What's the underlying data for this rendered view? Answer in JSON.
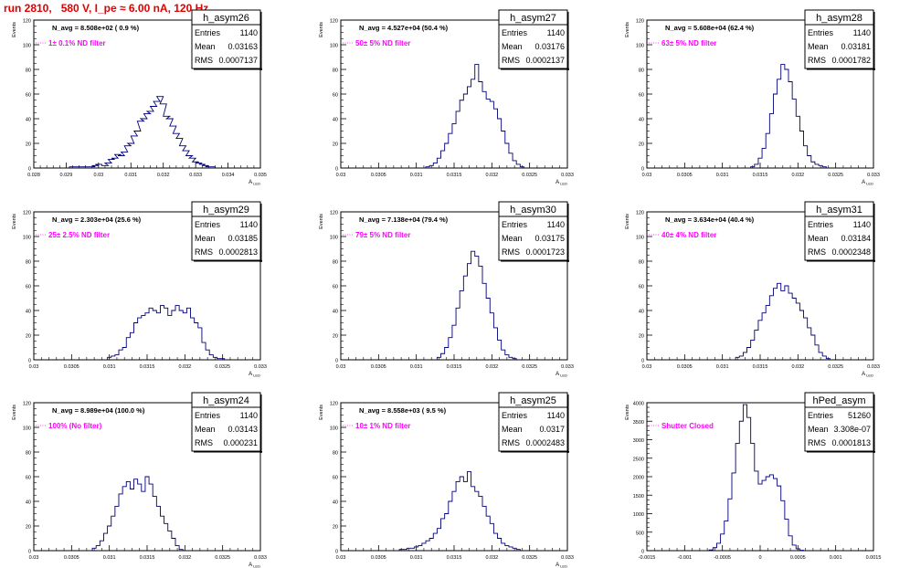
{
  "page": {
    "run_title": "run 2810,   580 V, I_pe ≈ 6.00 nA, 120 Hz"
  },
  "chart_data": [
    {
      "type": "histogram",
      "name": "h_asym26",
      "navg": "N_avg = 8.508e+02 ( 0.9 %)",
      "filter": "1± 0.1% ND filter",
      "stats": {
        "entries": "1140",
        "mean": "0.03163",
        "rms": "0.0007137"
      },
      "ylabel": "Events",
      "xlabel": "A_{LED}",
      "xlim": [
        0.028,
        0.035
      ],
      "ylim": [
        0,
        120
      ],
      "xticks": [
        "0.028",
        "0.029",
        "0.03",
        "0.031",
        "0.032",
        "0.033",
        "0.034",
        "0.035"
      ],
      "yticks": [
        "0",
        "20",
        "40",
        "60",
        "80",
        "100",
        "120"
      ],
      "x": [
        0.0292,
        0.0294,
        0.0296,
        0.0298,
        0.0299,
        0.03,
        0.0302,
        0.0303,
        0.0304,
        0.0305,
        0.0306,
        0.0307,
        0.0308,
        0.0309,
        0.031,
        0.0311,
        0.0312,
        0.0313,
        0.0314,
        0.0315,
        0.0316,
        0.0317,
        0.0318,
        0.0319,
        0.032,
        0.0321,
        0.0322,
        0.0323,
        0.0324,
        0.0325,
        0.0326,
        0.0327,
        0.0328,
        0.0329,
        0.033,
        0.0331,
        0.0332,
        0.0333,
        0.0334,
        0.0335
      ],
      "y": [
        1,
        1,
        1,
        1,
        2,
        3,
        2,
        4,
        7,
        8,
        11,
        10,
        13,
        18,
        20,
        26,
        30,
        38,
        40,
        44,
        46,
        50,
        54,
        58,
        52,
        42,
        40,
        34,
        28,
        24,
        18,
        14,
        10,
        8,
        5,
        4,
        3,
        2,
        1,
        1
      ]
    },
    {
      "type": "histogram",
      "name": "h_asym27",
      "navg": "N_avg = 4.527e+04 (50.4 %)",
      "filter": "50± 5% ND filter",
      "stats": {
        "entries": "1140",
        "mean": "0.03176",
        "rms": "0.0002137"
      },
      "ylabel": "Events",
      "xlabel": "A_{LED}",
      "xlim": [
        0.03,
        0.033
      ],
      "ylim": [
        0,
        120
      ],
      "xticks": [
        "0.03",
        "0.0305",
        "0.031",
        "0.0315",
        "0.032",
        "0.0325",
        "0.033"
      ],
      "yticks": [
        "0",
        "20",
        "40",
        "60",
        "80",
        "100",
        "120"
      ],
      "x": [
        0.03115,
        0.0312,
        0.03125,
        0.0313,
        0.03135,
        0.0314,
        0.03145,
        0.0315,
        0.03155,
        0.0316,
        0.03165,
        0.0317,
        0.03175,
        0.0318,
        0.03185,
        0.0319,
        0.03195,
        0.032,
        0.03205,
        0.0321,
        0.03215,
        0.0322,
        0.03225,
        0.0323,
        0.03235,
        0.0324
      ],
      "y": [
        1,
        2,
        4,
        8,
        14,
        20,
        28,
        36,
        46,
        55,
        60,
        66,
        72,
        84,
        70,
        62,
        56,
        54,
        48,
        40,
        30,
        20,
        12,
        6,
        3,
        1
      ]
    },
    {
      "type": "histogram",
      "name": "h_asym28",
      "navg": "N_avg = 5.608e+04 (62.4 %)",
      "filter": "63± 5% ND filter",
      "stats": {
        "entries": "1140",
        "mean": "0.03181",
        "rms": "0.0001782"
      },
      "ylabel": "Events",
      "xlabel": "A_{LED}",
      "xlim": [
        0.03,
        0.033
      ],
      "ylim": [
        0,
        120
      ],
      "xticks": [
        "0.03",
        "0.0305",
        "0.031",
        "0.0315",
        "0.032",
        "0.0325",
        "0.033"
      ],
      "yticks": [
        "0",
        "20",
        "40",
        "60",
        "80",
        "100",
        "120"
      ],
      "x": [
        0.0314,
        0.03145,
        0.0315,
        0.03155,
        0.0316,
        0.03165,
        0.0317,
        0.03175,
        0.0318,
        0.03185,
        0.0319,
        0.03195,
        0.032,
        0.03205,
        0.0321,
        0.03215,
        0.0322,
        0.03225,
        0.0323,
        0.03235
      ],
      "y": [
        1,
        3,
        8,
        16,
        28,
        44,
        60,
        72,
        84,
        80,
        70,
        56,
        42,
        30,
        18,
        10,
        5,
        3,
        2,
        1
      ]
    },
    {
      "type": "histogram",
      "name": "h_asym29",
      "navg": "N_avg = 2.303e+04 (25.6 %)",
      "filter": "25± 2.5% ND filter",
      "stats": {
        "entries": "1140",
        "mean": "0.03185",
        "rms": "0.0002813"
      },
      "ylabel": "Events",
      "xlabel": "A_{LED}",
      "xlim": [
        0.03,
        0.033
      ],
      "ylim": [
        0,
        120
      ],
      "xticks": [
        "0.03",
        "0.0305",
        "0.031",
        "0.0315",
        "0.032",
        "0.0325",
        "0.033"
      ],
      "yticks": [
        "0",
        "20",
        "40",
        "60",
        "80",
        "100",
        "120"
      ],
      "x": [
        0.031,
        0.03105,
        0.0311,
        0.03115,
        0.0312,
        0.03125,
        0.0313,
        0.03135,
        0.0314,
        0.03145,
        0.0315,
        0.03155,
        0.0316,
        0.03165,
        0.0317,
        0.03175,
        0.0318,
        0.03185,
        0.0319,
        0.03195,
        0.032,
        0.03205,
        0.0321,
        0.03215,
        0.0322,
        0.03225,
        0.0323,
        0.03235,
        0.0324,
        0.03245,
        0.0325
      ],
      "y": [
        2,
        3,
        4,
        8,
        10,
        18,
        22,
        30,
        34,
        36,
        38,
        42,
        40,
        38,
        44,
        42,
        36,
        40,
        44,
        40,
        38,
        42,
        34,
        30,
        26,
        14,
        8,
        4,
        2,
        1,
        1
      ]
    },
    {
      "type": "histogram",
      "name": "h_asym30",
      "navg": "N_avg = 7.138e+04 (79.4 %)",
      "filter": "79± 5% ND filter",
      "stats": {
        "entries": "1140",
        "mean": "0.03175",
        "rms": "0.0001723"
      },
      "ylabel": "Events",
      "xlabel": "A_{LED}",
      "xlim": [
        0.03,
        0.033
      ],
      "ylim": [
        0,
        120
      ],
      "xticks": [
        "0.03",
        "0.0305",
        "0.031",
        "0.0315",
        "0.032",
        "0.0325",
        "0.033"
      ],
      "yticks": [
        "0",
        "20",
        "40",
        "60",
        "80",
        "100",
        "120"
      ],
      "x": [
        0.0313,
        0.03135,
        0.0314,
        0.03145,
        0.0315,
        0.03155,
        0.0316,
        0.03165,
        0.0317,
        0.03175,
        0.0318,
        0.03185,
        0.0319,
        0.03195,
        0.032,
        0.03205,
        0.0321,
        0.03215,
        0.0322,
        0.03225,
        0.0323
      ],
      "y": [
        2,
        5,
        10,
        18,
        28,
        42,
        56,
        68,
        78,
        88,
        84,
        76,
        62,
        50,
        38,
        26,
        16,
        8,
        4,
        2,
        1
      ]
    },
    {
      "type": "histogram",
      "name": "h_asym31",
      "navg": "N_avg = 3.634e+04 (40.4 %)",
      "filter": "40± 4% ND filter",
      "stats": {
        "entries": "1140",
        "mean": "0.03184",
        "rms": "0.0002348"
      },
      "ylabel": "Events",
      "xlabel": "A_{LED}",
      "xlim": [
        0.03,
        0.033
      ],
      "ylim": [
        0,
        120
      ],
      "xticks": [
        "0.03",
        "0.0305",
        "0.031",
        "0.0315",
        "0.032",
        "0.0325",
        "0.033"
      ],
      "yticks": [
        "0",
        "20",
        "40",
        "60",
        "80",
        "100",
        "120"
      ],
      "x": [
        0.0312,
        0.03125,
        0.0313,
        0.03135,
        0.0314,
        0.03145,
        0.0315,
        0.03155,
        0.0316,
        0.03165,
        0.0317,
        0.03175,
        0.0318,
        0.03185,
        0.0319,
        0.03195,
        0.032,
        0.03205,
        0.0321,
        0.03215,
        0.0322,
        0.03225,
        0.0323,
        0.03235,
        0.0324
      ],
      "y": [
        2,
        3,
        6,
        10,
        16,
        24,
        32,
        38,
        44,
        52,
        58,
        62,
        56,
        60,
        54,
        50,
        46,
        40,
        34,
        26,
        20,
        12,
        6,
        3,
        1
      ]
    },
    {
      "type": "histogram",
      "name": "h_asym24",
      "navg": "N_avg = 8.989e+04 (100.0 %)",
      "filter": "100% (No filter)",
      "stats": {
        "entries": "1140",
        "mean": "0.03143",
        "rms": "0.000231"
      },
      "ylabel": "Events",
      "xlabel": "A_{LED}",
      "xlim": [
        0.03,
        0.033
      ],
      "ylim": [
        0,
        120
      ],
      "xticks": [
        "0.03",
        "0.0305",
        "0.031",
        "0.0315",
        "0.032",
        "0.0325",
        "0.033"
      ],
      "yticks": [
        "0",
        "20",
        "40",
        "60",
        "80",
        "100",
        "120"
      ],
      "x": [
        0.0308,
        0.03085,
        0.0309,
        0.03095,
        0.031,
        0.03105,
        0.0311,
        0.03115,
        0.0312,
        0.03125,
        0.0313,
        0.03135,
        0.0314,
        0.03145,
        0.0315,
        0.03155,
        0.0316,
        0.03165,
        0.0317,
        0.03175,
        0.0318,
        0.03185,
        0.0319,
        0.03195
      ],
      "y": [
        2,
        4,
        8,
        14,
        20,
        28,
        36,
        46,
        52,
        56,
        50,
        58,
        54,
        48,
        60,
        54,
        44,
        36,
        28,
        22,
        16,
        10,
        4,
        1
      ]
    },
    {
      "type": "histogram",
      "name": "h_asym25",
      "navg": "N_avg = 8.558e+03 ( 9.5 %)",
      "filter": "10± 1% ND filter",
      "stats": {
        "entries": "1140",
        "mean": "0.0317",
        "rms": "0.0002483"
      },
      "ylabel": "Events",
      "xlabel": "A_{LED}",
      "xlim": [
        0.03,
        0.033
      ],
      "ylim": [
        0,
        120
      ],
      "xticks": [
        "0.03",
        "0.0305",
        "0.031",
        "0.0315",
        "0.032",
        "0.0325",
        "0.033"
      ],
      "yticks": [
        "0",
        "20",
        "40",
        "60",
        "80",
        "100",
        "120"
      ],
      "x": [
        0.0308,
        0.03085,
        0.0309,
        0.03095,
        0.031,
        0.03105,
        0.0311,
        0.03115,
        0.0312,
        0.03125,
        0.0313,
        0.03135,
        0.0314,
        0.03145,
        0.0315,
        0.03155,
        0.0316,
        0.03165,
        0.0317,
        0.03175,
        0.0318,
        0.03185,
        0.0319,
        0.03195,
        0.032,
        0.03205,
        0.0321,
        0.03215,
        0.0322,
        0.03225,
        0.0323,
        0.03235
      ],
      "y": [
        1,
        1,
        2,
        2,
        3,
        4,
        6,
        8,
        10,
        14,
        18,
        26,
        30,
        40,
        48,
        56,
        60,
        56,
        64,
        52,
        48,
        44,
        36,
        28,
        22,
        14,
        10,
        6,
        4,
        3,
        2,
        1
      ]
    },
    {
      "type": "histogram",
      "name": "hPed_asym",
      "navg": "",
      "filter": "Shutter Closed",
      "stats": {
        "entries": "51260",
        "mean": "3.308e-07",
        "rms": "0.0001813"
      },
      "ylabel": "Events",
      "xlabel": "",
      "xlim": [
        -0.0015,
        0.0015
      ],
      "ylim": [
        0,
        4000
      ],
      "xticks": [
        "-0.0015",
        "-0.001",
        "-0.0005",
        "0",
        "0.0005",
        "0.001",
        "0.0015"
      ],
      "yticks": [
        "0",
        "500",
        "1000",
        "1500",
        "2000",
        "2500",
        "3000",
        "3500",
        "4000"
      ],
      "x": [
        -0.00065,
        -0.0006,
        -0.00055,
        -0.0005,
        -0.00045,
        -0.0004,
        -0.00035,
        -0.0003,
        -0.00025,
        -0.0002,
        -0.00015,
        -0.0001,
        -5e-05,
        0.0,
        5e-05,
        0.0001,
        0.00015,
        0.0002,
        0.00025,
        0.0003,
        0.00035,
        0.0004,
        0.00045,
        0.0005,
        0.00055
      ],
      "y": [
        20,
        80,
        200,
        450,
        800,
        1400,
        2100,
        2900,
        3500,
        3950,
        3600,
        2900,
        2150,
        1800,
        1900,
        2000,
        2050,
        1950,
        1750,
        1350,
        850,
        400,
        150,
        50,
        10
      ]
    }
  ]
}
